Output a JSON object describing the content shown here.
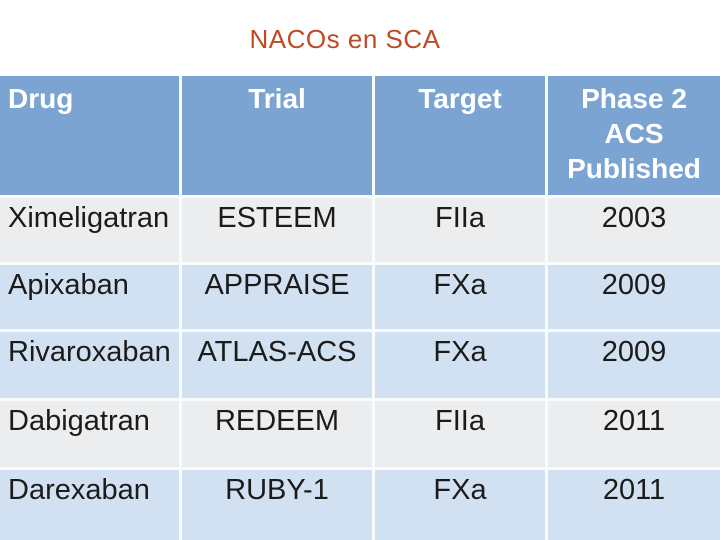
{
  "title": "NACOs en SCA",
  "table": {
    "columns": [
      "Drug",
      "Trial",
      "Target",
      "Phase 2 ACS Published"
    ],
    "rows": [
      {
        "drug": "Ximeligatran",
        "trial": "ESTEEM",
        "target": "FIIa",
        "published": "2003"
      },
      {
        "drug": "Apixaban",
        "trial": "APPRAISE",
        "target": "FXa",
        "published": "2009"
      },
      {
        "drug": "Rivaroxaban",
        "trial": "ATLAS-ACS",
        "target": "FXa",
        "published": "2009"
      },
      {
        "drug": "Dabigatran",
        "trial": "REDEEM",
        "target": "FIIa",
        "published": "2011"
      },
      {
        "drug": "Darexaban",
        "trial": "RUBY-1",
        "target": "FXa",
        "published": "2011"
      }
    ]
  },
  "colors": {
    "accent-header": "#7CA4D3",
    "band-blue": "#D2E1F1",
    "band-light": "#ECEDEE",
    "separator": "#FAFBFC",
    "title-color": "#BE4B22",
    "text-color": "#1B1B1B",
    "page-bg": "#FFFFFF"
  }
}
